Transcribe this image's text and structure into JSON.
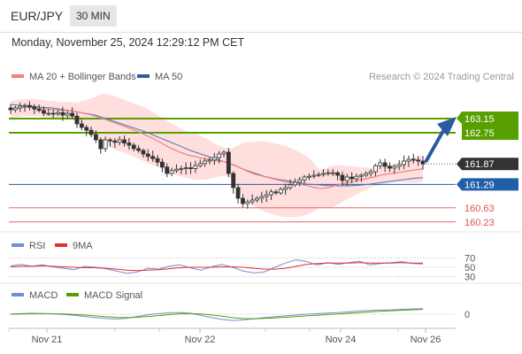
{
  "header": {
    "symbol": "EUR/JPY",
    "timeframe": "30 MIN",
    "timestamp": "Monday, November 25, 2024 12:29:12 PM CET"
  },
  "legend": {
    "ma20_label": "MA 20 + Bollinger Bands",
    "ma50_label": "MA 50",
    "credit": "Research © 2024 Trading Central",
    "rsi_label": "RSI",
    "ma9_label": "9MA",
    "macd_label": "MACD",
    "macd_signal_label": "MACD Signal"
  },
  "colors": {
    "ma20": "#f08080",
    "band": "#ffd0d0",
    "ma50": "#4a78b8",
    "up": "#2a2a2a",
    "green": "#58a000",
    "blue_level": "#2a5aa0",
    "red_level": "#e05050",
    "rsi": "#6f8ed8",
    "macd": "#6f8ed8",
    "signal": "#58a000"
  },
  "chart_data": [
    {
      "type": "candlestick",
      "title": "EUR/JPY 30 MIN",
      "x_ticks": [
        "Nov 21",
        "Nov 22",
        "Nov 24",
        "Nov 26"
      ],
      "ylim": [
        160.0,
        164.0
      ],
      "closes": [
        163.4,
        163.45,
        163.5,
        163.52,
        163.48,
        163.42,
        163.38,
        163.3,
        163.3,
        163.28,
        163.32,
        163.25,
        163.3,
        163.22,
        163.0,
        162.9,
        162.82,
        162.7,
        162.55,
        162.3,
        162.55,
        162.52,
        162.48,
        162.55,
        162.46,
        162.4,
        162.3,
        162.25,
        162.15,
        162.08,
        162.02,
        161.92,
        161.78,
        161.6,
        161.68,
        161.72,
        161.74,
        161.76,
        161.74,
        161.82,
        161.88,
        161.95,
        161.98,
        162.05,
        162.15,
        162.2,
        161.6,
        161.2,
        160.9,
        160.75,
        160.8,
        160.85,
        160.9,
        160.95,
        161.0,
        161.08,
        161.05,
        161.15,
        161.2,
        161.28,
        161.35,
        161.42,
        161.5,
        161.52,
        161.55,
        161.57,
        161.6,
        161.62,
        161.62,
        161.55,
        161.4,
        161.5,
        161.45,
        161.52,
        161.55,
        161.6,
        161.65,
        161.82,
        161.9,
        161.8,
        161.75,
        161.8,
        161.85,
        161.95,
        162.0,
        161.98,
        161.95,
        161.87
      ],
      "ma50": [
        163.55,
        163.52,
        163.5,
        163.47,
        163.45,
        163.4,
        163.36,
        163.3,
        163.25,
        163.15,
        163.05,
        162.95,
        162.85,
        162.75,
        162.62,
        162.5,
        162.38,
        162.25,
        162.15,
        162.05,
        161.95,
        161.85,
        161.72,
        161.62,
        161.52,
        161.45,
        161.4,
        161.35,
        161.3,
        161.28,
        161.26,
        161.25,
        161.25,
        161.27,
        161.3,
        161.34,
        161.38,
        161.42,
        161.46,
        161.48
      ],
      "current_price": 161.87,
      "levels": [
        {
          "value": 163.15,
          "label": "163.15",
          "kind": "resistance"
        },
        {
          "value": 162.75,
          "label": "162.75",
          "kind": "resistance"
        },
        {
          "value": 161.87,
          "label": "161.87",
          "kind": "last"
        },
        {
          "value": 161.29,
          "label": "161.29",
          "kind": "pivot"
        },
        {
          "value": 160.63,
          "label": "160.63",
          "kind": "support"
        },
        {
          "value": 160.23,
          "label": "160.23",
          "kind": "support"
        }
      ],
      "forecast_direction": "up"
    },
    {
      "type": "line",
      "title": "RSI",
      "ylim": [
        20,
        80
      ],
      "y_ticks": [
        70,
        50,
        30
      ],
      "series": [
        {
          "name": "RSI",
          "values": [
            53,
            56,
            52,
            55,
            51,
            48,
            45,
            52,
            50,
            47,
            42,
            37,
            40,
            48,
            46,
            52,
            55,
            49,
            44,
            51,
            56,
            50,
            42,
            38,
            40,
            50,
            59,
            66,
            62,
            55,
            60,
            56,
            60,
            63,
            55,
            58,
            60,
            62,
            58,
            57
          ]
        },
        {
          "name": "9MA",
          "values": [
            51,
            52,
            52,
            53,
            52,
            51,
            50,
            49,
            49,
            48,
            46,
            44,
            43,
            44,
            45,
            47,
            49,
            50,
            50,
            50,
            51,
            51,
            50,
            48,
            46,
            46,
            48,
            52,
            56,
            58,
            59,
            59,
            59,
            60,
            59,
            59,
            59,
            60,
            59,
            59
          ]
        }
      ]
    },
    {
      "type": "line",
      "title": "MACD",
      "ylim": [
        -1,
        1
      ],
      "y_ticks": [
        0
      ],
      "series": [
        {
          "name": "MACD",
          "values": [
            0.02,
            0.05,
            0.08,
            0.06,
            0.03,
            -0.02,
            -0.1,
            -0.2,
            -0.3,
            -0.38,
            -0.42,
            -0.35,
            -0.2,
            -0.05,
            0.05,
            0.12,
            0.15,
            0.08,
            -0.1,
            -0.3,
            -0.45,
            -0.55,
            -0.5,
            -0.4,
            -0.3,
            -0.22,
            -0.15,
            -0.08,
            0.0,
            0.05,
            0.1,
            0.15,
            0.2,
            0.28,
            0.32,
            0.35,
            0.38,
            0.42,
            0.45,
            0.48
          ]
        },
        {
          "name": "MACD Signal",
          "values": [
            0.0,
            0.02,
            0.04,
            0.05,
            0.04,
            0.02,
            -0.02,
            -0.08,
            -0.15,
            -0.22,
            -0.28,
            -0.3,
            -0.27,
            -0.2,
            -0.12,
            -0.04,
            0.03,
            0.06,
            0.02,
            -0.07,
            -0.18,
            -0.3,
            -0.38,
            -0.4,
            -0.37,
            -0.32,
            -0.27,
            -0.21,
            -0.15,
            -0.09,
            -0.03,
            0.02,
            0.08,
            0.14,
            0.2,
            0.25,
            0.3,
            0.34,
            0.38,
            0.42
          ]
        }
      ]
    }
  ]
}
